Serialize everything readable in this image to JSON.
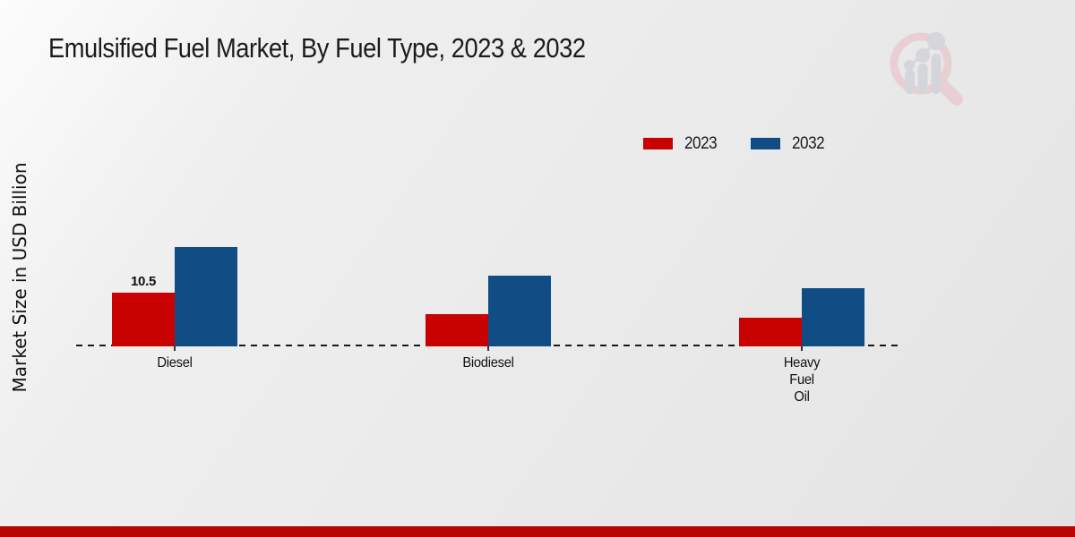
{
  "page": {
    "footer_bar_color": "#b90404"
  },
  "logo": {
    "ring_color": "#e9cdd1",
    "bars_color": "#d2d4da"
  },
  "legend": {
    "items": [
      {
        "label": "2023",
        "color": "#c80101"
      },
      {
        "label": "2032",
        "color": "#114d85"
      }
    ]
  },
  "chart_data": {
    "type": "bar",
    "title": "Emulsified Fuel Market, By Fuel Type, 2023 & 2032",
    "ylabel": "Market Size in USD Billion",
    "xlabel": "",
    "categories": [
      "Diesel",
      "Biodiesel",
      "Heavy Fuel Oil"
    ],
    "category_display": [
      "Diesel",
      "Biodiesel",
      "Heavy\nFuel\nOil"
    ],
    "series": [
      {
        "name": "2023",
        "color": "#c80101",
        "values": [
          10.5,
          6.3,
          5.6
        ]
      },
      {
        "name": "2032",
        "color": "#114d85",
        "values": [
          19.4,
          13.8,
          11.4
        ]
      }
    ],
    "value_labels": [
      {
        "series_index": 0,
        "category_index": 0,
        "text": "10.5"
      }
    ],
    "baseline_style": "dashed",
    "grid": false,
    "y_axis_ticks_shown": false,
    "legend_position": "top-right"
  }
}
